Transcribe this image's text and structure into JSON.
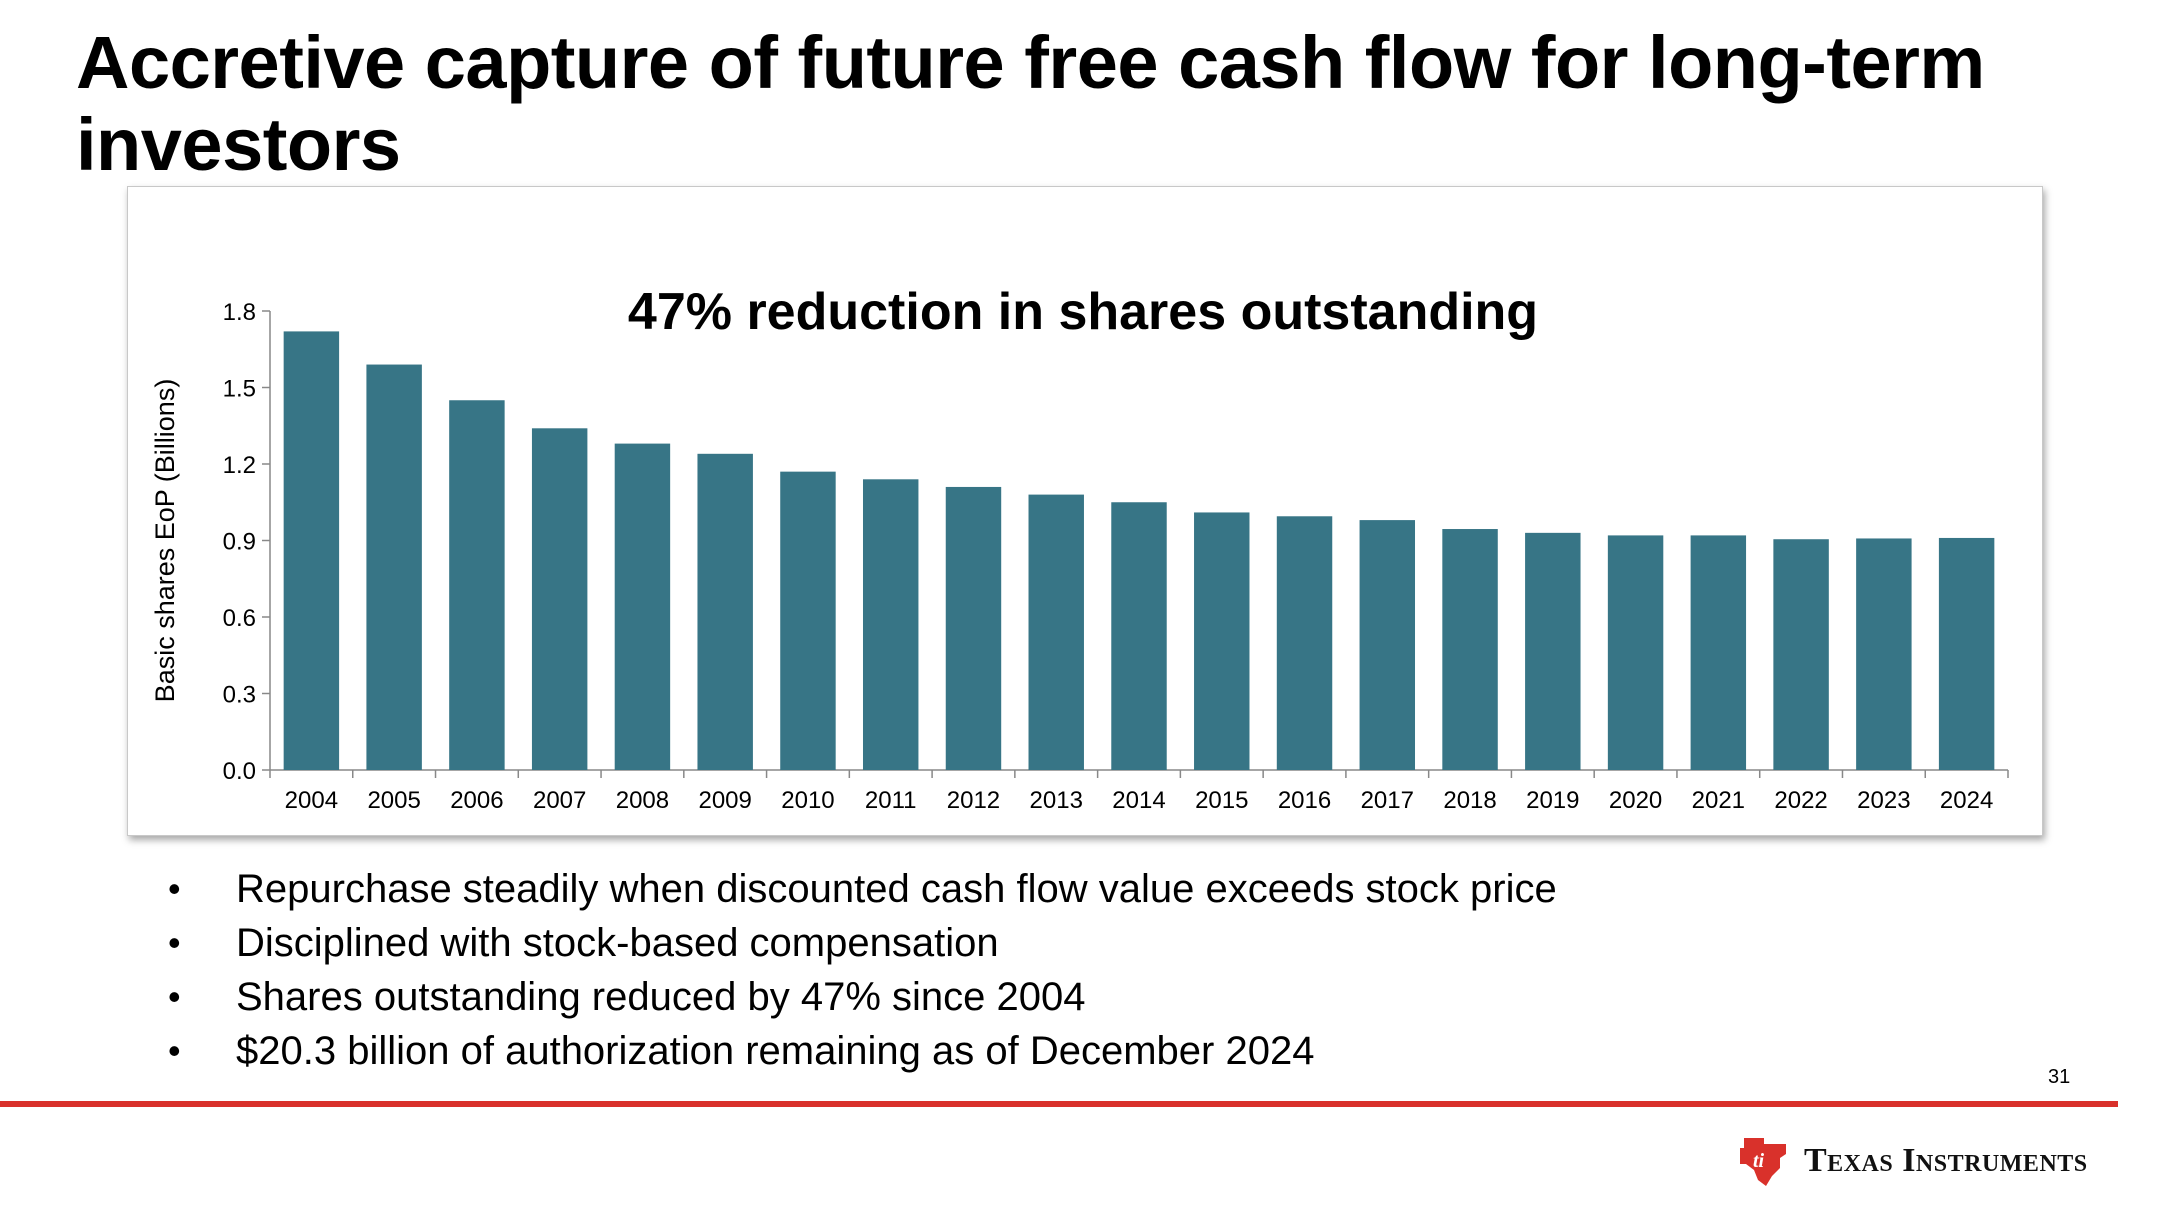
{
  "slide": {
    "title": "Accretive capture of future free cash flow for long-term investors",
    "page_number": "31",
    "bullets": [
      "Repurchase steadily when discounted cash flow value exceeds stock price",
      "Disciplined with stock-based compensation",
      "Shares outstanding reduced by 47% since 2004",
      "$20.3 billion of authorization remaining as of December 2024"
    ],
    "bullet_glyph": "•",
    "brand": "Texas Instruments",
    "accent_color": "#d9312b",
    "bar_color": "#377586"
  },
  "chart_data": {
    "type": "bar",
    "title": "47% reduction in shares outstanding",
    "xlabel": "",
    "ylabel": "Basic shares EoP (Billions)",
    "categories": [
      "2004",
      "2005",
      "2006",
      "2007",
      "2008",
      "2009",
      "2010",
      "2011",
      "2012",
      "2013",
      "2014",
      "2015",
      "2016",
      "2017",
      "2018",
      "2019",
      "2020",
      "2021",
      "2022",
      "2023",
      "2024"
    ],
    "values": [
      1.72,
      1.59,
      1.45,
      1.34,
      1.28,
      1.24,
      1.17,
      1.14,
      1.11,
      1.08,
      1.05,
      1.01,
      0.995,
      0.98,
      0.945,
      0.93,
      0.92,
      0.92,
      0.905,
      0.908,
      0.91
    ],
    "yticks": [
      "0.0",
      "0.3",
      "0.6",
      "0.9",
      "1.2",
      "1.5",
      "1.8"
    ],
    "ylim": [
      0,
      1.8
    ],
    "grid": false,
    "legend": "none"
  }
}
